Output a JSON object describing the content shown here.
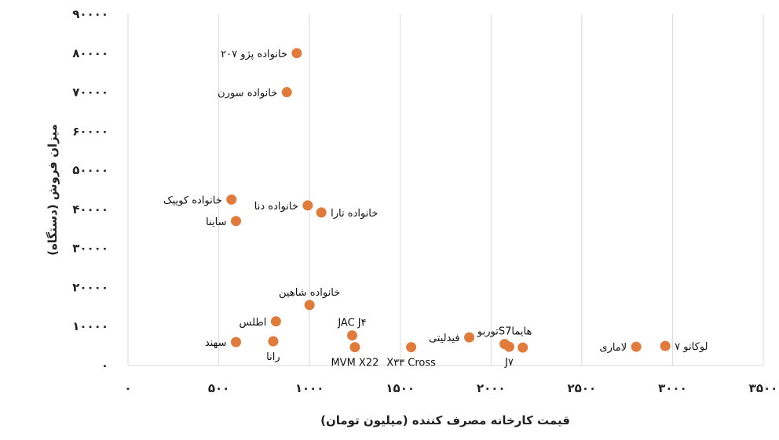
{
  "chart_data": {
    "type": "scatter",
    "xlabel": "قیمت کارخانه مصرف کننده (میلیون تومان)",
    "ylabel": "میزان فروش (دستگاه)",
    "xlim": [
      0,
      3500
    ],
    "ylim": [
      0,
      90000
    ],
    "x_ticks": [
      {
        "value": 0,
        "label": "۰"
      },
      {
        "value": 500,
        "label": "۵۰۰"
      },
      {
        "value": 1000,
        "label": "۱۰۰۰"
      },
      {
        "value": 1500,
        "label": "۱۵۰۰"
      },
      {
        "value": 2000,
        "label": "۲۰۰۰"
      },
      {
        "value": 2500,
        "label": "۲۵۰۰"
      },
      {
        "value": 3000,
        "label": "۳۰۰۰"
      },
      {
        "value": 3500,
        "label": "۳۵۰۰"
      }
    ],
    "y_ticks": [
      {
        "value": 0,
        "label": "۰"
      },
      {
        "value": 10000,
        "label": "۱۰۰۰۰"
      },
      {
        "value": 20000,
        "label": "۲۰۰۰۰"
      },
      {
        "value": 30000,
        "label": "۳۰۰۰۰"
      },
      {
        "value": 40000,
        "label": "۴۰۰۰۰"
      },
      {
        "value": 50000,
        "label": "۵۰۰۰۰"
      },
      {
        "value": 60000,
        "label": "۶۰۰۰۰"
      },
      {
        "value": 70000,
        "label": "۷۰۰۰۰"
      },
      {
        "value": 80000,
        "label": "۸۰۰۰۰"
      },
      {
        "value": 90000,
        "label": "۹۰۰۰۰"
      }
    ],
    "grid": "vertical",
    "marker_color": "#E07B3C",
    "points": [
      {
        "name": "خانواده پژو ۲۰۷",
        "x": 930,
        "y": 80000,
        "label_pos": "left"
      },
      {
        "name": "خانواده سورن",
        "x": 875,
        "y": 70000,
        "label_pos": "left"
      },
      {
        "name": "خانواده کوییک",
        "x": 570,
        "y": 42500,
        "label_pos": "left"
      },
      {
        "name": "ساینا",
        "x": 595,
        "y": 37000,
        "label_pos": "left"
      },
      {
        "name": "خانواده دنا",
        "x": 990,
        "y": 41000,
        "label_pos": "left"
      },
      {
        "name": "خانواده تارا",
        "x": 1065,
        "y": 39200,
        "label_pos": "right"
      },
      {
        "name": "خانواده شاهین",
        "x": 1000,
        "y": 15500,
        "label_pos": "top"
      },
      {
        "name": "اطلس",
        "x": 815,
        "y": 11300,
        "label_pos": "left"
      },
      {
        "name": "سهند",
        "x": 595,
        "y": 6000,
        "label_pos": "left"
      },
      {
        "name": "رانا",
        "x": 800,
        "y": 6200,
        "label_pos": "bottom"
      },
      {
        "name": "JAC J۴",
        "x": 1235,
        "y": 7700,
        "label_pos": "top"
      },
      {
        "name": "MVM X22",
        "x": 1250,
        "y": 4700,
        "label_pos": "bottom"
      },
      {
        "name": "X۳۳ Cross",
        "x": 1560,
        "y": 4700,
        "label_pos": "bottom"
      },
      {
        "name": "فیدلیتی",
        "x": 1880,
        "y": 7200,
        "label_pos": "left"
      },
      {
        "name": "توربوS7هایما",
        "x": 2075,
        "y": 5500,
        "label_pos": "top"
      },
      {
        "name": "J۷",
        "x": 2100,
        "y": 4800,
        "label_pos": "bottom"
      },
      {
        "name": "",
        "x": 2175,
        "y": 4600
      },
      {
        "name": "لاماری",
        "x": 2800,
        "y": 4800,
        "label_pos": "left"
      },
      {
        "name": "لوکانو ۷",
        "x": 2960,
        "y": 5000,
        "label_pos": "right"
      }
    ]
  }
}
